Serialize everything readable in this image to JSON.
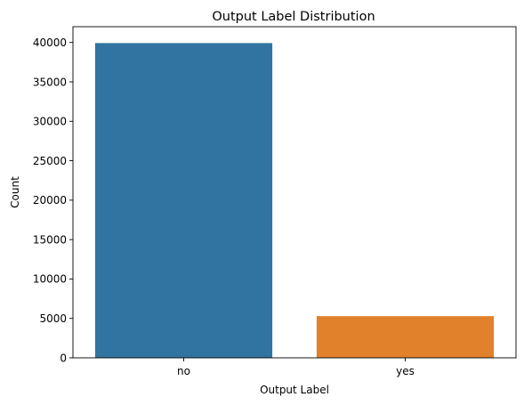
{
  "chart_data": {
    "type": "bar",
    "title": "Output Label Distribution",
    "xlabel": "Output Label",
    "ylabel": "Count",
    "categories": [
      "no",
      "yes"
    ],
    "values": [
      39922,
      5289
    ],
    "colors": [
      "#3274a1",
      "#e1812c"
    ],
    "ylim": [
      0,
      42000
    ],
    "yticks": [
      0,
      5000,
      10000,
      15000,
      20000,
      25000,
      30000,
      35000,
      40000
    ],
    "ytick_labels": [
      "0",
      "5000",
      "10000",
      "15000",
      "20000",
      "25000",
      "30000",
      "35000",
      "40000"
    ],
    "grid": false,
    "legend": "none"
  }
}
